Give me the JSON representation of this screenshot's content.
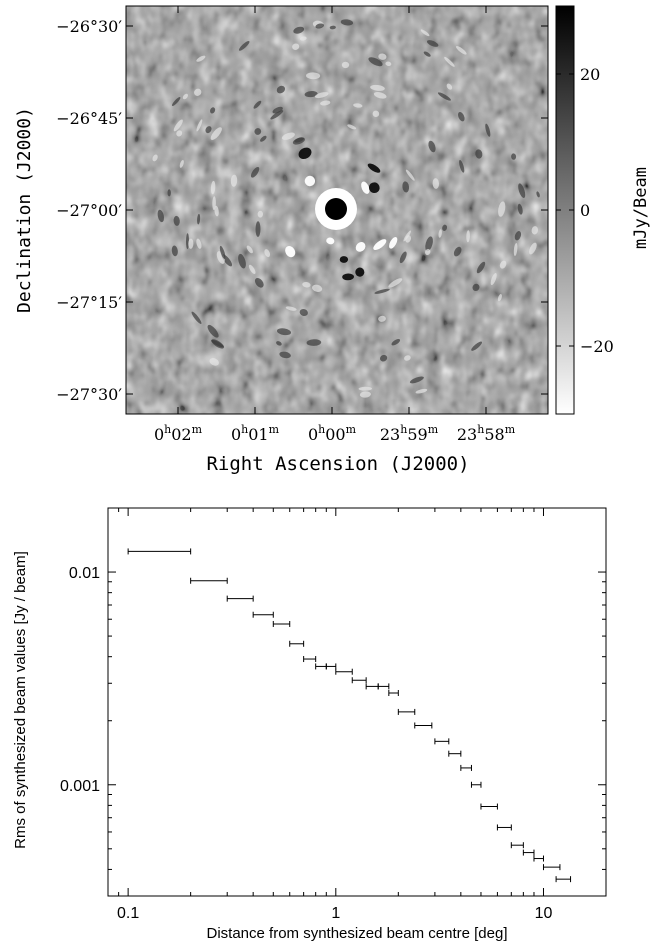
{
  "chart_data": [
    {
      "type": "heatmap",
      "title": "",
      "xlabel": "Right Ascension (J2000)",
      "ylabel": "Declination (J2000)",
      "x_ticks": [
        {
          "h": "0",
          "m": "02"
        },
        {
          "h": "0",
          "m": "01"
        },
        {
          "h": "0",
          "m": "00"
        },
        {
          "h": "23",
          "m": "59"
        },
        {
          "h": "23",
          "m": "58"
        }
      ],
      "y_ticks": [
        "−26°30′",
        "−26°45′",
        "−27°00′",
        "−27°15′",
        "−27°30′"
      ],
      "colorbar": {
        "label": "mJy/Beam",
        "range": [
          -30,
          30
        ],
        "ticks": [
          "20",
          "0",
          "−20"
        ],
        "tick_values": [
          20,
          0,
          -20
        ],
        "colors": {
          "low": "#ffffff",
          "high": "#000000"
        }
      }
    },
    {
      "type": "scatter",
      "title": "",
      "xlabel": "Distance from synthesized beam centre [deg]",
      "ylabel": "Rms of synthesized beam values [Jy / beam]",
      "xscale": "log",
      "yscale": "log",
      "xlim": [
        0.08,
        20
      ],
      "ylim": [
        0.0003,
        0.02
      ],
      "x_ticks": [
        "0.1",
        "1",
        "10"
      ],
      "y_ticks": [
        "0.01",
        "0.001"
      ],
      "series": [
        {
          "points": [
            {
              "x0": 0.1,
              "x1": 0.2,
              "y": 0.0125
            },
            {
              "x0": 0.2,
              "x1": 0.3,
              "y": 0.0091
            },
            {
              "x0": 0.3,
              "x1": 0.4,
              "y": 0.0075
            },
            {
              "x0": 0.4,
              "x1": 0.5,
              "y": 0.0063
            },
            {
              "x0": 0.5,
              "x1": 0.6,
              "y": 0.0057
            },
            {
              "x0": 0.6,
              "x1": 0.7,
              "y": 0.0046
            },
            {
              "x0": 0.7,
              "x1": 0.8,
              "y": 0.0039
            },
            {
              "x0": 0.8,
              "x1": 0.9,
              "y": 0.0036
            },
            {
              "x0": 0.9,
              "x1": 1.0,
              "y": 0.0036
            },
            {
              "x0": 1.0,
              "x1": 1.2,
              "y": 0.0034
            },
            {
              "x0": 1.2,
              "x1": 1.4,
              "y": 0.0031
            },
            {
              "x0": 1.4,
              "x1": 1.6,
              "y": 0.0029
            },
            {
              "x0": 1.6,
              "x1": 1.8,
              "y": 0.0029
            },
            {
              "x0": 1.8,
              "x1": 2.0,
              "y": 0.0027
            },
            {
              "x0": 2.0,
              "x1": 2.4,
              "y": 0.0022
            },
            {
              "x0": 2.4,
              "x1": 2.9,
              "y": 0.0019
            },
            {
              "x0": 3.0,
              "x1": 3.5,
              "y": 0.0016
            },
            {
              "x0": 3.5,
              "x1": 4.0,
              "y": 0.0014
            },
            {
              "x0": 4.0,
              "x1": 4.5,
              "y": 0.0012
            },
            {
              "x0": 4.5,
              "x1": 5.0,
              "y": 0.001
            },
            {
              "x0": 5.0,
              "x1": 6.0,
              "y": 0.00079
            },
            {
              "x0": 6.0,
              "x1": 7.0,
              "y": 0.00063
            },
            {
              "x0": 7.0,
              "x1": 8.0,
              "y": 0.00052
            },
            {
              "x0": 8.0,
              "x1": 9.0,
              "y": 0.00048
            },
            {
              "x0": 9.0,
              "x1": 10.0,
              "y": 0.00045
            },
            {
              "x0": 10.0,
              "x1": 12.0,
              "y": 0.00041
            },
            {
              "x0": 11.5,
              "x1": 13.5,
              "y": 0.00036
            }
          ]
        }
      ]
    }
  ]
}
